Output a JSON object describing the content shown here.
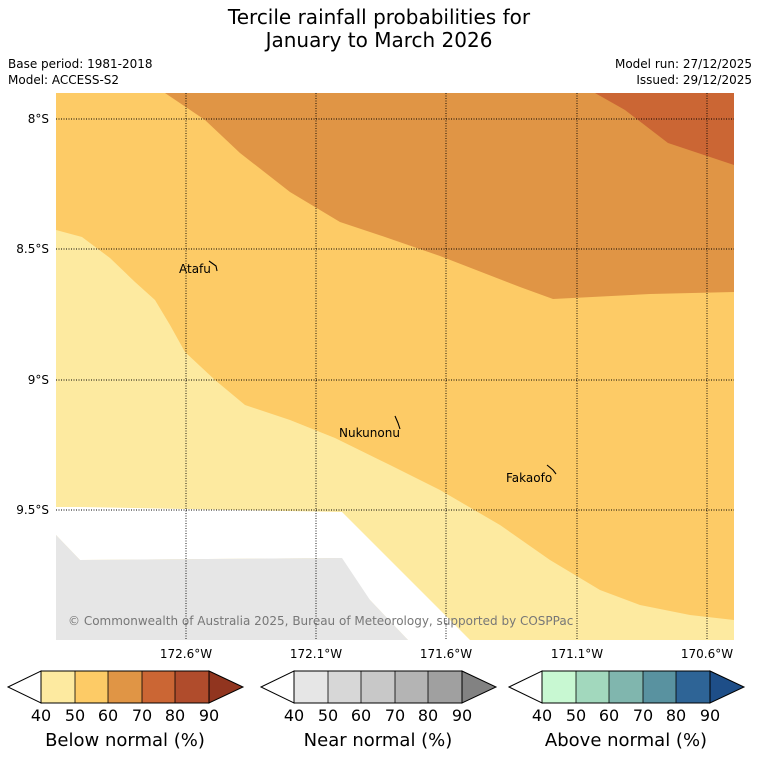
{
  "header": {
    "title_line1": "Tercile rainfall probabilities for",
    "title_line2": "January to March 2026",
    "base_period": "Base period: 1981-2018",
    "model": "Model: ACCESS-S2",
    "model_run": "Model run: 27/12/2025",
    "issued": "Issued: 29/12/2025"
  },
  "map": {
    "latitude_labels": [
      "8°S",
      "8.5°S",
      "9°S",
      "9.5°S"
    ],
    "longitude_labels": [
      "172.6°W",
      "172.1°W",
      "171.6°W",
      "171.1°W",
      "170.6°W"
    ],
    "islands": [
      "Atafu",
      "Nukunonu",
      "Fakaofo"
    ],
    "copyright": "© Commonwealth of Australia 2025, Bureau of Meteorology, supported by COSPPac"
  },
  "legends": [
    {
      "title": "Below normal (%)",
      "ticks": [
        "40",
        "50",
        "60",
        "70",
        "80",
        "90"
      ],
      "colors": [
        "#ffffff",
        "#fdeaa0",
        "#fdcb66",
        "#e09545",
        "#cb6634",
        "#b04c2c",
        "#91351f"
      ]
    },
    {
      "title": "Near normal (%)",
      "ticks": [
        "40",
        "50",
        "60",
        "70",
        "80",
        "90"
      ],
      "colors": [
        "#ffffff",
        "#e6e6e6",
        "#d7d7d7",
        "#c8c8c8",
        "#b4b4b4",
        "#a0a0a0",
        "#828282"
      ]
    },
    {
      "title": "Above normal (%)",
      "ticks": [
        "40",
        "50",
        "60",
        "70",
        "80",
        "90"
      ],
      "colors": [
        "#ffffff",
        "#c8f8d2",
        "#a2d8bd",
        "#80b6ae",
        "#5992a0",
        "#2e6496",
        "#1e4e88"
      ]
    }
  ]
}
